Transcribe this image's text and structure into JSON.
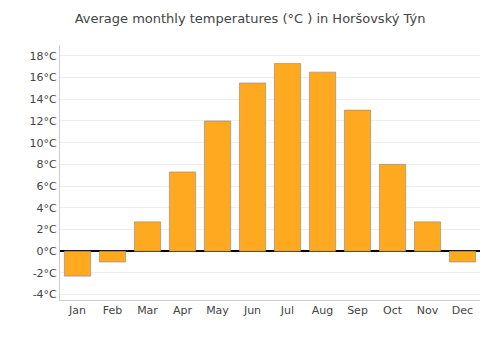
{
  "chart_data": {
    "type": "bar",
    "title": "Average monthly temperatures (°C ) in Horšovský Týn",
    "categories": [
      "Jan",
      "Feb",
      "Mar",
      "Apr",
      "May",
      "Jun",
      "Jul",
      "Aug",
      "Sep",
      "Oct",
      "Nov",
      "Dec"
    ],
    "values": [
      -2.3,
      -1.0,
      2.7,
      7.3,
      12.0,
      15.5,
      17.3,
      16.5,
      13.0,
      8.0,
      2.7,
      -1.0
    ],
    "color": "#FFA920",
    "ylim": [
      -4.5,
      19
    ],
    "yticks": [
      {
        "value": -4,
        "label": "-4°C"
      },
      {
        "value": -2,
        "label": "-2°C"
      },
      {
        "value": 0,
        "label": "0°C"
      },
      {
        "value": 2,
        "label": "2°C"
      },
      {
        "value": 4,
        "label": "4°C"
      },
      {
        "value": 6,
        "label": "6°C"
      },
      {
        "value": 8,
        "label": "8°C"
      },
      {
        "value": 10,
        "label": "10°C"
      },
      {
        "value": 12,
        "label": "12°C"
      },
      {
        "value": 14,
        "label": "14°C"
      },
      {
        "value": 16,
        "label": "16°C"
      },
      {
        "value": 18,
        "label": "18°C"
      }
    ],
    "grid": true
  }
}
